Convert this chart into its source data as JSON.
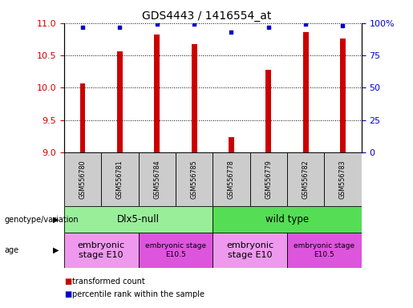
{
  "title": "GDS4443 / 1416554_at",
  "samples": [
    "GSM556780",
    "GSM556781",
    "GSM556784",
    "GSM556785",
    "GSM556778",
    "GSM556779",
    "GSM556782",
    "GSM556783"
  ],
  "bar_values": [
    10.07,
    10.56,
    10.83,
    10.67,
    9.24,
    10.28,
    10.86,
    10.76
  ],
  "percentile_values": [
    97,
    97,
    99,
    99,
    93,
    97,
    99,
    98
  ],
  "ylim_left": [
    9,
    11
  ],
  "ylim_right": [
    0,
    100
  ],
  "yticks_left": [
    9,
    9.5,
    10,
    10.5,
    11
  ],
  "yticks_right": [
    0,
    25,
    50,
    75,
    100
  ],
  "bar_color": "#cc0000",
  "dot_color": "#0000cc",
  "sample_box_color": "#cccccc",
  "genotype_groups": [
    {
      "label": "Dlx5-null",
      "start": 0,
      "end": 4,
      "color": "#99ee99"
    },
    {
      "label": "wild type",
      "start": 4,
      "end": 8,
      "color": "#55dd55"
    }
  ],
  "age_groups": [
    {
      "label": "embryonic\nstage E10",
      "start": 0,
      "end": 2,
      "color": "#ee99ee"
    },
    {
      "label": "embryonic stage\nE10.5",
      "start": 2,
      "end": 4,
      "color": "#dd55dd"
    },
    {
      "label": "embryonic\nstage E10",
      "start": 4,
      "end": 6,
      "color": "#ee99ee"
    },
    {
      "label": "embryonic stage\nE10.5",
      "start": 6,
      "end": 8,
      "color": "#dd55dd"
    }
  ],
  "left_axis_color": "#cc0000",
  "right_axis_color": "#0000cc",
  "legend_red_label": "transformed count",
  "legend_blue_label": "percentile rank within the sample",
  "genotype_label": "genotype/variation",
  "age_label": "age",
  "bar_width": 0.15
}
